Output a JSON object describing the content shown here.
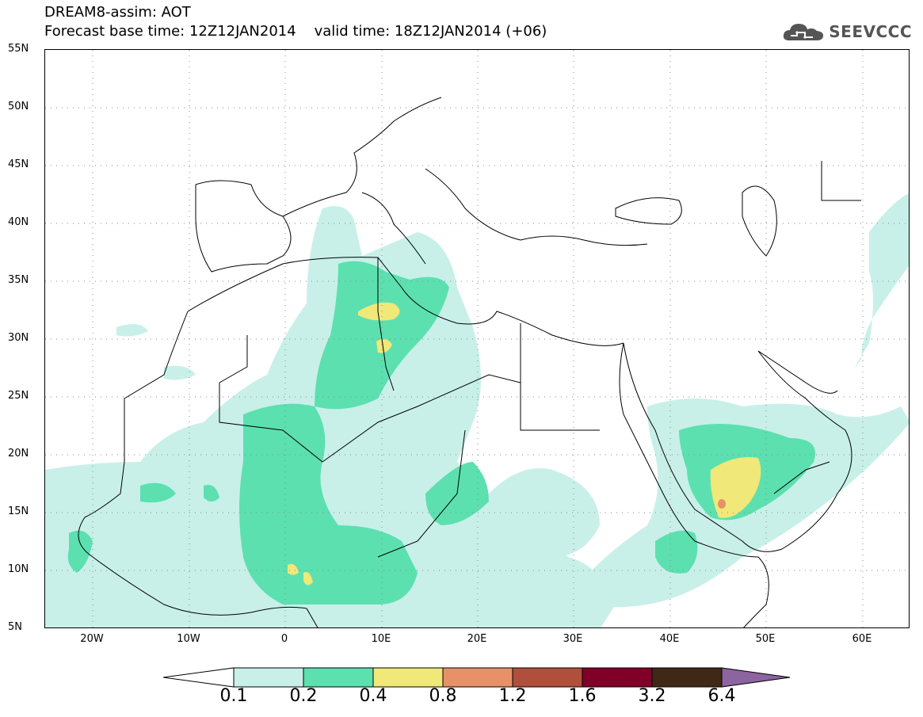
{
  "header": {
    "line1": "DREAM8-assim: AOT",
    "line2": "Forecast base time: 12Z12JAN2014    valid time: 18Z12JAN2014 (+06)",
    "logo_text": "SEEVCCC"
  },
  "axes": {
    "lat_labels": [
      "55N",
      "50N",
      "45N",
      "40N",
      "35N",
      "30N",
      "25N",
      "20N",
      "15N",
      "10N",
      "5N"
    ],
    "lon_labels": [
      "20W",
      "10W",
      "0",
      "10E",
      "20E",
      "30E",
      "40E",
      "50E",
      "60E"
    ]
  },
  "colorbar": {
    "labels": [
      "0.1",
      "0.2",
      "0.4",
      "0.8",
      "1.2",
      "1.6",
      "3.2",
      "6.4"
    ],
    "colors": [
      "#ffffff",
      "#c8f0e8",
      "#5ce0b0",
      "#f0e878",
      "#e89068",
      "#b0503c",
      "#800028",
      "#402818",
      "#8c64a0"
    ]
  }
}
